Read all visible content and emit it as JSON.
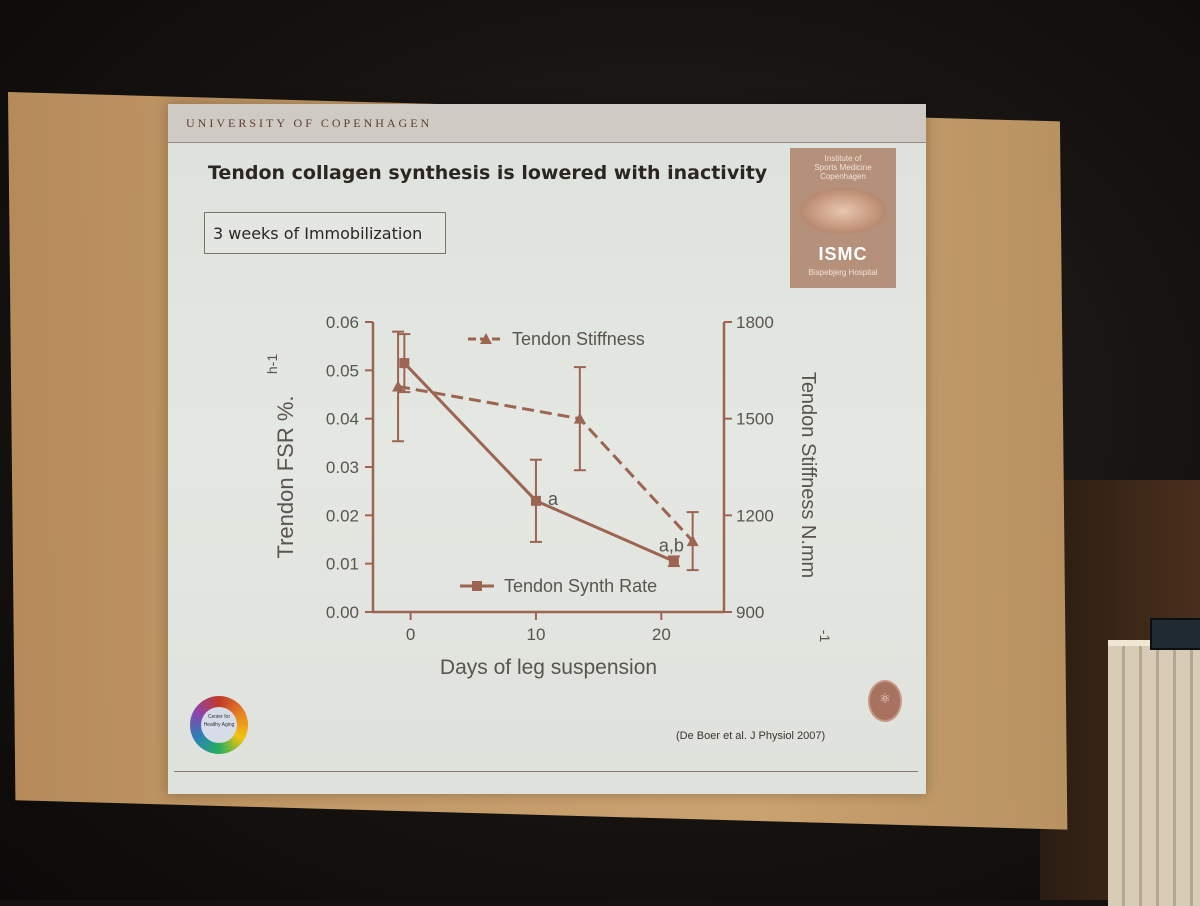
{
  "slide": {
    "university": "UNIVERSITY OF COPENHAGEN",
    "title": "Tendon collagen synthesis is lowered with inactivity",
    "subtitle": "3 weeks of Immobilization",
    "citation": "(De Boer et al. J Physiol 2007)",
    "logo": {
      "line1": "Institute of",
      "line2": "Sports Medicine",
      "line3": "Copenhagen",
      "name": "ISMC",
      "hospital": "Bispebjerg Hospital"
    },
    "center_logo_text": "Center for Healthy Aging"
  },
  "colors": {
    "series": "#9c6552",
    "axis": "#9c6552",
    "text": "#5a5450"
  },
  "chart_data": {
    "type": "line",
    "xlabel": "Days of leg suspension",
    "xticks": [
      0,
      10,
      20
    ],
    "xlim": [
      -3,
      25
    ],
    "y_left": {
      "label": "Trendon FSR %.",
      "label_unit": "h-1",
      "ticks": [
        "0.00",
        "0.01",
        "0.02",
        "0.03",
        "0.04",
        "0.05",
        "0.06"
      ],
      "lim": [
        0,
        0.06
      ]
    },
    "y_right": {
      "label": "Tendon Stiffness N.mm",
      "label_unit": "-1",
      "ticks": [
        "900",
        "1200",
        "1500",
        "1800"
      ],
      "lim": [
        900,
        1800
      ]
    },
    "series": [
      {
        "name": "Tendon Synth Rate",
        "axis": "left",
        "marker": "square",
        "line": "solid",
        "x": [
          -0.5,
          10,
          21
        ],
        "y": [
          0.0515,
          0.023,
          0.0105
        ],
        "err": [
          0.006,
          0.0085,
          0.001
        ],
        "labels": [
          "",
          "a",
          "a,b"
        ]
      },
      {
        "name": "Tendon Stiffness",
        "axis": "right",
        "marker": "triangle",
        "line": "dashed",
        "x": [
          -1,
          13.5,
          22.5
        ],
        "y": [
          1600,
          1500,
          1120
        ],
        "err": [
          170,
          160,
          90
        ]
      }
    ]
  }
}
